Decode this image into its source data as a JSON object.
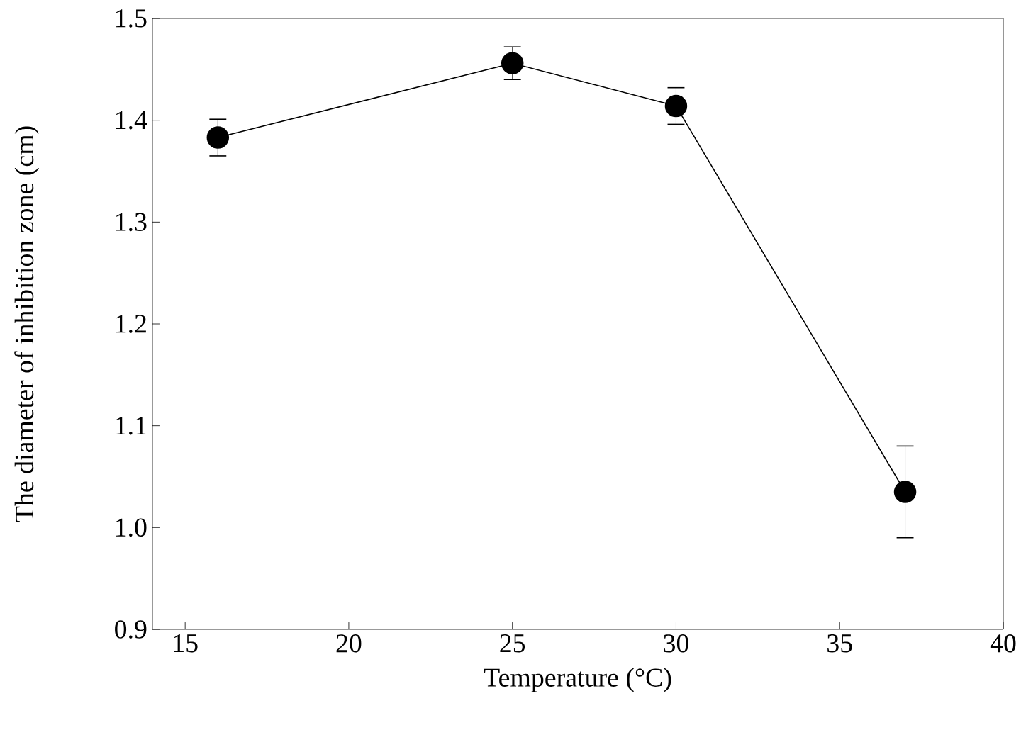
{
  "chart_data": {
    "type": "line",
    "xlabel": "Temperature (°C)",
    "ylabel": "The diameter of inhibition zone (cm)",
    "x": [
      16,
      25,
      30,
      37
    ],
    "series": [
      {
        "color": "#000000",
        "values": [
          1.383,
          1.456,
          1.414,
          1.035
        ],
        "errors": [
          0.018,
          0.016,
          0.018,
          0.045
        ]
      }
    ],
    "xlim": [
      14,
      40
    ],
    "ylim": [
      0.9,
      1.5
    ],
    "xticks": [
      15,
      20,
      25,
      30,
      35,
      40
    ],
    "yticks": [
      0.9,
      {
        "value": 1.0,
        "label": "1.0"
      },
      1.1,
      1.2,
      1.3,
      1.4,
      1.5
    ],
    "marker": "circle",
    "line_style": "solid"
  }
}
